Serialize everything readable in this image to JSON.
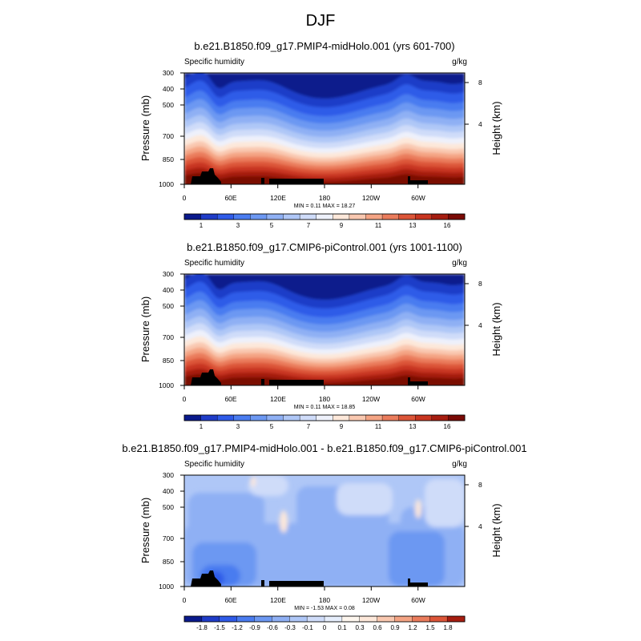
{
  "page_title": "DJF",
  "chart_data": [
    {
      "type": "heatmap",
      "title": "b.e21.B1850.f09_g17.PMIP4-midHolo.001 (yrs 601-700)",
      "left_string": "Specific humidity",
      "right_string": "g/kg",
      "ylabel": "Pressure (mb)",
      "ylabel_right": "Height (km)",
      "x_ticks": [
        "0",
        "60E",
        "120E",
        "180",
        "120W",
        "60W"
      ],
      "y_ticks": [
        "300",
        "400",
        "500",
        "700",
        "850",
        "1000"
      ],
      "y_right_ticks": [
        "8",
        "4"
      ],
      "stats": "MIN =   0.11  MAX =   18.27",
      "min": 0.11,
      "max": 18.27,
      "field": "full",
      "colorbar_labels": [
        "1",
        "3",
        "5",
        "7",
        "9",
        "11",
        "13",
        "16"
      ],
      "colorbar_colors": [
        "#0a1a8c",
        "#1f3cc8",
        "#2f5be8",
        "#4a7cf0",
        "#6c98f2",
        "#8fb0f4",
        "#afc7f7",
        "#cfdcf9",
        "#eef1fb",
        "#fde8da",
        "#f9c8b0",
        "#f4a484",
        "#ea7c5c",
        "#dc5538",
        "#c83520",
        "#a61d10",
        "#7a0a05"
      ]
    },
    {
      "type": "heatmap",
      "title": "b.e21.B1850.f09_g17.CMIP6-piControl.001 (yrs 1001-1100)",
      "left_string": "Specific humidity",
      "right_string": "g/kg",
      "ylabel": "Pressure (mb)",
      "ylabel_right": "Height (km)",
      "x_ticks": [
        "0",
        "60E",
        "120E",
        "180",
        "120W",
        "60W"
      ],
      "y_ticks": [
        "300",
        "400",
        "500",
        "700",
        "850",
        "1000"
      ],
      "y_right_ticks": [
        "8",
        "4"
      ],
      "stats": "MIN =   0.11  MAX =   18.85",
      "min": 0.11,
      "max": 18.85,
      "field": "full",
      "colorbar_labels": [
        "1",
        "3",
        "5",
        "7",
        "9",
        "11",
        "13",
        "16"
      ],
      "colorbar_colors": [
        "#0a1a8c",
        "#1f3cc8",
        "#2f5be8",
        "#4a7cf0",
        "#6c98f2",
        "#8fb0f4",
        "#afc7f7",
        "#cfdcf9",
        "#eef1fb",
        "#fde8da",
        "#f9c8b0",
        "#f4a484",
        "#ea7c5c",
        "#dc5538",
        "#c83520",
        "#a61d10",
        "#7a0a05"
      ]
    },
    {
      "type": "heatmap",
      "title": "b.e21.B1850.f09_g17.PMIP4-midHolo.001 - b.e21.B1850.f09_g17.CMIP6-piControl.001",
      "left_string": "Specific humidity",
      "right_string": "g/kg",
      "ylabel": "Pressure (mb)",
      "ylabel_right": "Height (km)",
      "x_ticks": [
        "0",
        "60E",
        "120E",
        "180",
        "120W",
        "60W"
      ],
      "y_ticks": [
        "300",
        "400",
        "500",
        "700",
        "850",
        "1000"
      ],
      "y_right_ticks": [
        "8",
        "4"
      ],
      "stats": "MIN =   -1.53  MAX =   0.08",
      "min": -1.53,
      "max": 0.08,
      "field": "diff",
      "colorbar_labels": [
        "-1.8",
        "-1.5",
        "-1.2",
        "-0.9",
        "-0.6",
        "-0.3",
        "-0.1",
        "0",
        "0.1",
        "0.3",
        "0.6",
        "0.9",
        "1.2",
        "1.5",
        "1.8"
      ],
      "colorbar_colors": [
        "#0a1a8c",
        "#1f3cc8",
        "#2f5be8",
        "#4a7cf0",
        "#6c98f2",
        "#8fb0f4",
        "#afc7f7",
        "#cfdcf9",
        "#e6eefc",
        "#fdf6ee",
        "#fde8da",
        "#f9c8b0",
        "#f4a484",
        "#ea7c5c",
        "#dc5538",
        "#a61d10"
      ]
    }
  ]
}
